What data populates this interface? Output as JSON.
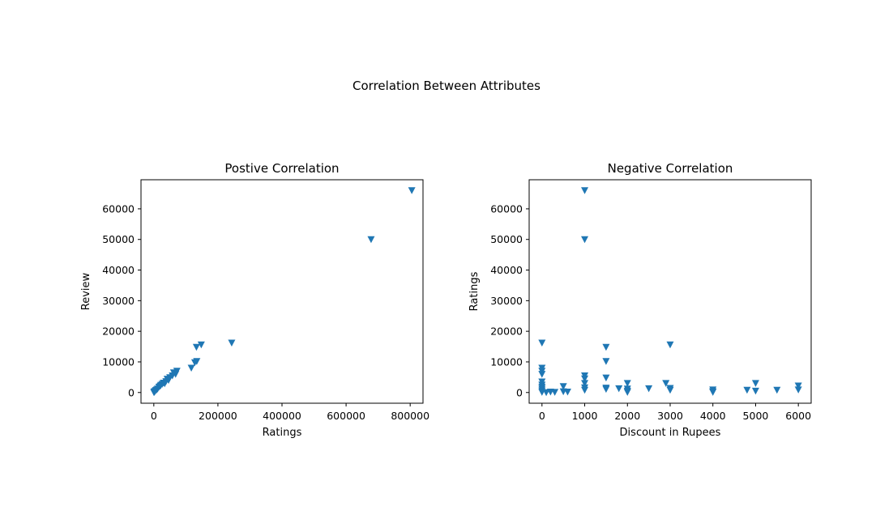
{
  "figure": {
    "suptitle": "Correlation Between Attributes"
  },
  "chart_data": [
    {
      "type": "scatter",
      "title": "Postive Correlation",
      "xlabel": "Ratings",
      "ylabel": "Review",
      "marker": "triangle-down",
      "color": "#1f77b4",
      "xlim": [
        -40000,
        840000
      ],
      "ylim": [
        -3500,
        69500
      ],
      "xticks": [
        0,
        200000,
        400000,
        600000,
        800000
      ],
      "xtick_labels": [
        "0",
        "200000",
        "400000",
        "600000",
        "800000"
      ],
      "yticks": [
        0,
        10000,
        20000,
        30000,
        40000,
        50000,
        60000
      ],
      "ytick_labels": [
        "0",
        "10000",
        "20000",
        "30000",
        "40000",
        "50000",
        "60000"
      ],
      "points": [
        [
          805000,
          66000
        ],
        [
          678000,
          50000
        ],
        [
          243000,
          16200
        ],
        [
          148000,
          15600
        ],
        [
          133000,
          14800
        ],
        [
          134000,
          10200
        ],
        [
          128000,
          9800
        ],
        [
          117000,
          8000
        ],
        [
          72000,
          7000
        ],
        [
          68000,
          6000
        ],
        [
          62000,
          6500
        ],
        [
          58000,
          5500
        ],
        [
          50000,
          4900
        ],
        [
          42000,
          4400
        ],
        [
          38000,
          3600
        ],
        [
          30000,
          3100
        ],
        [
          26000,
          2700
        ],
        [
          20000,
          2100
        ],
        [
          16000,
          1800
        ],
        [
          12000,
          1200
        ],
        [
          9000,
          900
        ],
        [
          6000,
          700
        ],
        [
          4000,
          400
        ],
        [
          2500,
          300
        ],
        [
          1500,
          150
        ],
        [
          800,
          80
        ],
        [
          300,
          30
        ],
        [
          34000,
          2900
        ],
        [
          46000,
          4000
        ],
        [
          22000,
          2400
        ]
      ]
    },
    {
      "type": "scatter",
      "title": "Negative Correlation",
      "xlabel": "Discount in Rupees",
      "ylabel": "Ratings",
      "marker": "triangle-down",
      "color": "#1f77b4",
      "xlim": [
        -300,
        6300
      ],
      "ylim": [
        -3500,
        69500
      ],
      "xticks": [
        0,
        1000,
        2000,
        3000,
        4000,
        5000,
        6000
      ],
      "xtick_labels": [
        "0",
        "1000",
        "2000",
        "3000",
        "4000",
        "5000",
        "6000"
      ],
      "yticks": [
        0,
        10000,
        20000,
        30000,
        40000,
        50000,
        60000
      ],
      "ytick_labels": [
        "0",
        "10000",
        "20000",
        "30000",
        "40000",
        "50000",
        "60000"
      ],
      "points": [
        [
          1000,
          66000
        ],
        [
          1000,
          50000
        ],
        [
          0,
          16200
        ],
        [
          3000,
          15600
        ],
        [
          1500,
          14800
        ],
        [
          1500,
          10200
        ],
        [
          0,
          8000
        ],
        [
          0,
          7000
        ],
        [
          0,
          6000
        ],
        [
          1000,
          5500
        ],
        [
          1000,
          4500
        ],
        [
          1500,
          4800
        ],
        [
          0,
          3500
        ],
        [
          2000,
          3000
        ],
        [
          2900,
          3000
        ],
        [
          5000,
          3000
        ],
        [
          6000,
          2200
        ],
        [
          0,
          2500
        ],
        [
          500,
          2000
        ],
        [
          1000,
          3000
        ],
        [
          0,
          1200
        ],
        [
          1500,
          1500
        ],
        [
          1800,
          1300
        ],
        [
          2500,
          1300
        ],
        [
          3000,
          1400
        ],
        [
          0,
          600
        ],
        [
          200,
          200
        ],
        [
          500,
          300
        ],
        [
          600,
          200
        ],
        [
          1000,
          800
        ],
        [
          2000,
          1200
        ],
        [
          2000,
          500
        ],
        [
          3000,
          800
        ],
        [
          4000,
          900
        ],
        [
          4000,
          300
        ],
        [
          4800,
          800
        ],
        [
          5000,
          500
        ],
        [
          5500,
          800
        ],
        [
          6000,
          900
        ],
        [
          0,
          100
        ],
        [
          1500,
          1100
        ],
        [
          1000,
          1600
        ],
        [
          2000,
          100
        ],
        [
          4000,
          100
        ],
        [
          100,
          0
        ],
        [
          300,
          100
        ],
        [
          0,
          1800
        ]
      ]
    }
  ]
}
